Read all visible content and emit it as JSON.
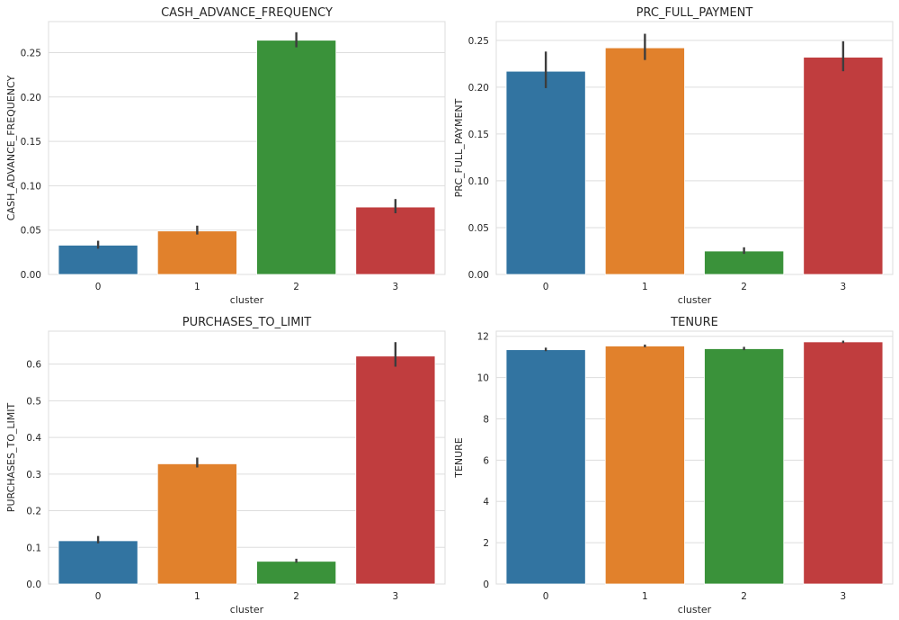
{
  "chart_data": [
    {
      "type": "bar",
      "title": "CASH_ADVANCE_FREQUENCY",
      "xlabel": "cluster",
      "ylabel": "CASH_ADVANCE_FREQUENCY",
      "categories": [
        "0",
        "1",
        "2",
        "3"
      ],
      "values": [
        0.033,
        0.049,
        0.264,
        0.076
      ],
      "ci": [
        [
          0.029,
          0.038
        ],
        [
          0.045,
          0.055
        ],
        [
          0.256,
          0.273
        ],
        [
          0.069,
          0.085
        ]
      ],
      "colors": [
        "#3274a1",
        "#e1812c",
        "#3a923a",
        "#c03d3e"
      ],
      "ylim": [
        0,
        0.285
      ],
      "yticks": [
        0.0,
        0.05,
        0.1,
        0.15,
        0.2,
        0.25
      ],
      "ytick_labels": [
        "0.00",
        "0.05",
        "0.10",
        "0.15",
        "0.20",
        "0.25"
      ],
      "grid": true
    },
    {
      "type": "bar",
      "title": "PRC_FULL_PAYMENT",
      "xlabel": "cluster",
      "ylabel": "PRC_FULL_PAYMENT",
      "categories": [
        "0",
        "1",
        "2",
        "3"
      ],
      "values": [
        0.217,
        0.242,
        0.025,
        0.232
      ],
      "ci": [
        [
          0.199,
          0.238
        ],
        [
          0.229,
          0.257
        ],
        [
          0.022,
          0.029
        ],
        [
          0.217,
          0.249
        ]
      ],
      "colors": [
        "#3274a1",
        "#e1812c",
        "#3a923a",
        "#c03d3e"
      ],
      "ylim": [
        0,
        0.27
      ],
      "yticks": [
        0.0,
        0.05,
        0.1,
        0.15,
        0.2,
        0.25
      ],
      "ytick_labels": [
        "0.00",
        "0.05",
        "0.10",
        "0.15",
        "0.20",
        "0.25"
      ],
      "grid": true
    },
    {
      "type": "bar",
      "title": "PURCHASES_TO_LIMIT",
      "xlabel": "cluster",
      "ylabel": "PURCHASES_TO_LIMIT",
      "categories": [
        "0",
        "1",
        "2",
        "3"
      ],
      "values": [
        0.118,
        0.328,
        0.062,
        0.622
      ],
      "ci": [
        [
          0.111,
          0.131
        ],
        [
          0.318,
          0.345
        ],
        [
          0.058,
          0.069
        ],
        [
          0.593,
          0.66
        ]
      ],
      "colors": [
        "#3274a1",
        "#e1812c",
        "#3a923a",
        "#c03d3e"
      ],
      "ylim": [
        0,
        0.69
      ],
      "yticks": [
        0.0,
        0.1,
        0.2,
        0.3,
        0.4,
        0.5,
        0.6
      ],
      "ytick_labels": [
        "0.0",
        "0.1",
        "0.2",
        "0.3",
        "0.4",
        "0.5",
        "0.6"
      ],
      "grid": true
    },
    {
      "type": "bar",
      "title": "TENURE",
      "xlabel": "cluster",
      "ylabel": "TENURE",
      "categories": [
        "0",
        "1",
        "2",
        "3"
      ],
      "values": [
        11.35,
        11.53,
        11.4,
        11.73
      ],
      "ci": [
        [
          11.28,
          11.45
        ],
        [
          11.47,
          11.6
        ],
        [
          11.33,
          11.49
        ],
        [
          11.67,
          11.79
        ]
      ],
      "colors": [
        "#3274a1",
        "#e1812c",
        "#3a923a",
        "#c03d3e"
      ],
      "ylim": [
        0,
        12.25
      ],
      "yticks": [
        0,
        2,
        4,
        6,
        8,
        10,
        12
      ],
      "ytick_labels": [
        "0",
        "2",
        "4",
        "6",
        "8",
        "10",
        "12"
      ],
      "grid": true
    }
  ]
}
